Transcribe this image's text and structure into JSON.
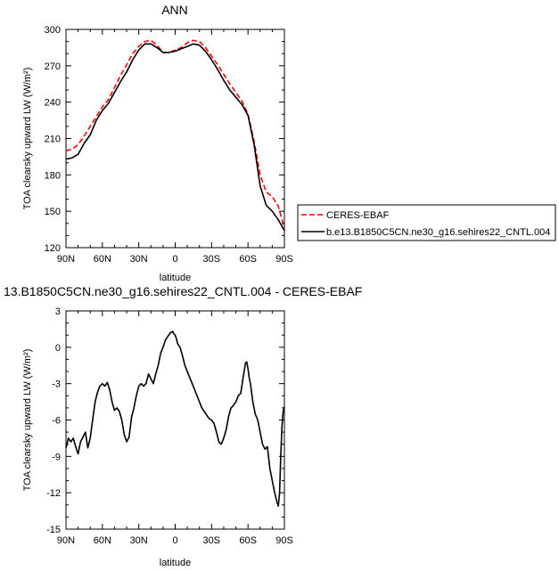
{
  "chart_data": [
    {
      "type": "line",
      "title": "ANN",
      "xlabel": "latitude",
      "ylabel": "TOA clearsky upward LW (W/m²)",
      "ylim": [
        120,
        300
      ],
      "xlim": [
        90,
        -90
      ],
      "yticks": [
        "300",
        "270",
        "240",
        "210",
        "180",
        "150",
        "120"
      ],
      "xticks": [
        "90N",
        "60N",
        "30N",
        "0",
        "30S",
        "60S",
        "90S"
      ],
      "legend_position": "right-outside",
      "series": [
        {
          "name": "CERES-EBAF",
          "color": "#ff0000",
          "dash": "dashed",
          "x": [
            90,
            85,
            80,
            75,
            70,
            65,
            60,
            55,
            50,
            45,
            40,
            35,
            30,
            25,
            20,
            15,
            10,
            5,
            0,
            -5,
            -10,
            -15,
            -20,
            -25,
            -30,
            -35,
            -40,
            -45,
            -50,
            -55,
            -60,
            -65,
            -70,
            -75,
            -80,
            -85,
            -90
          ],
          "y": [
            200,
            201,
            205,
            212,
            220,
            228,
            236,
            242,
            252,
            262,
            271,
            280,
            286,
            290,
            291,
            287,
            281,
            281,
            283,
            285,
            289,
            291,
            290,
            285,
            278,
            271,
            263,
            255,
            248,
            241,
            230,
            208,
            180,
            166,
            162,
            154,
            136
          ]
        },
        {
          "name": "b.e13.B1850C5CN.ne30_g16.sehires22_CNTL.004",
          "color": "#000000",
          "dash": "solid",
          "x": [
            90,
            85,
            80,
            75,
            70,
            65,
            60,
            55,
            50,
            45,
            40,
            35,
            30,
            25,
            20,
            15,
            10,
            5,
            0,
            -5,
            -10,
            -15,
            -20,
            -25,
            -30,
            -35,
            -40,
            -45,
            -50,
            -55,
            -60,
            -65,
            -70,
            -75,
            -80,
            -85,
            -90
          ],
          "y": [
            193,
            194,
            197,
            206,
            213,
            225,
            233,
            239,
            248,
            257,
            265,
            275,
            283,
            288,
            288,
            285,
            281,
            281,
            282,
            284,
            286,
            288,
            287,
            282,
            275,
            267,
            258,
            250,
            244,
            238,
            229,
            205,
            171,
            155,
            150,
            143,
            134
          ]
        }
      ]
    },
    {
      "type": "line",
      "title": "13.B1850C5CN.ne30_g16.sehires22_CNTL.004 - CERES-EBAF",
      "xlabel": "latitude",
      "ylabel": "TOA clearsky upward LW (W/m²)",
      "ylim": [
        -15,
        3
      ],
      "xlim": [
        90,
        -90
      ],
      "yticks": [
        "3",
        "0",
        "-3",
        "-6",
        "-9",
        "-12",
        "-15"
      ],
      "xticks": [
        "90N",
        "60N",
        "30N",
        "0",
        "30S",
        "60S",
        "90S"
      ],
      "series": [
        {
          "color": "#000000",
          "dash": "solid",
          "x": [
            90,
            88,
            86,
            84,
            82,
            80,
            78,
            76,
            74,
            72,
            70,
            68,
            66,
            64,
            62,
            60,
            58,
            56,
            54,
            52,
            50,
            48,
            46,
            44,
            42,
            40,
            38,
            36,
            34,
            32,
            30,
            28,
            26,
            24,
            22,
            20,
            18,
            16,
            14,
            12,
            10,
            8,
            6,
            4,
            2,
            1,
            0,
            -1,
            -2,
            -4,
            -6,
            -8,
            -10,
            -12,
            -14,
            -16,
            -18,
            -20,
            -22,
            -24,
            -26,
            -28,
            -30,
            -32,
            -34,
            -36,
            -38,
            -40,
            -42,
            -44,
            -46,
            -48,
            -50,
            -52,
            -54,
            -56,
            -58,
            -59,
            -60,
            -61,
            -62,
            -64,
            -66,
            -68,
            -70,
            -72,
            -74,
            -76,
            -78,
            -80,
            -82,
            -84,
            -85,
            -86,
            -87,
            -88,
            -89,
            -90
          ],
          "y": [
            -8.3,
            -7.5,
            -7.8,
            -7.5,
            -8.2,
            -8.8,
            -7.8,
            -7.4,
            -7.0,
            -8.3,
            -7.5,
            -6.0,
            -4.5,
            -3.7,
            -3.2,
            -3.0,
            -3.2,
            -2.9,
            -3.5,
            -4.5,
            -5.2,
            -5.0,
            -5.3,
            -6.0,
            -7.2,
            -7.8,
            -7.4,
            -5.8,
            -5.0,
            -4.0,
            -3.2,
            -3.0,
            -3.2,
            -3.0,
            -2.2,
            -2.6,
            -3.0,
            -2.2,
            -1.5,
            -0.5,
            0.0,
            0.6,
            0.9,
            1.2,
            1.3,
            1.1,
            1.0,
            0.7,
            0.3,
            0.0,
            -0.7,
            -1.5,
            -2.0,
            -2.5,
            -3.0,
            -3.5,
            -4.0,
            -4.5,
            -5.0,
            -5.3,
            -5.6,
            -5.9,
            -6.0,
            -6.3,
            -7.0,
            -7.8,
            -8.0,
            -7.5,
            -6.8,
            -5.7,
            -5.0,
            -4.8,
            -4.5,
            -4.0,
            -3.8,
            -2.5,
            -1.3,
            -1.2,
            -1.8,
            -2.5,
            -3.0,
            -4.5,
            -5.5,
            -6.0,
            -7.0,
            -8.0,
            -8.4,
            -8.2,
            -10.0,
            -11.0,
            -12.0,
            -12.8,
            -13.1,
            -12.0,
            -9.0,
            -6.5,
            -5.3,
            -4.9
          ]
        }
      ]
    }
  ]
}
